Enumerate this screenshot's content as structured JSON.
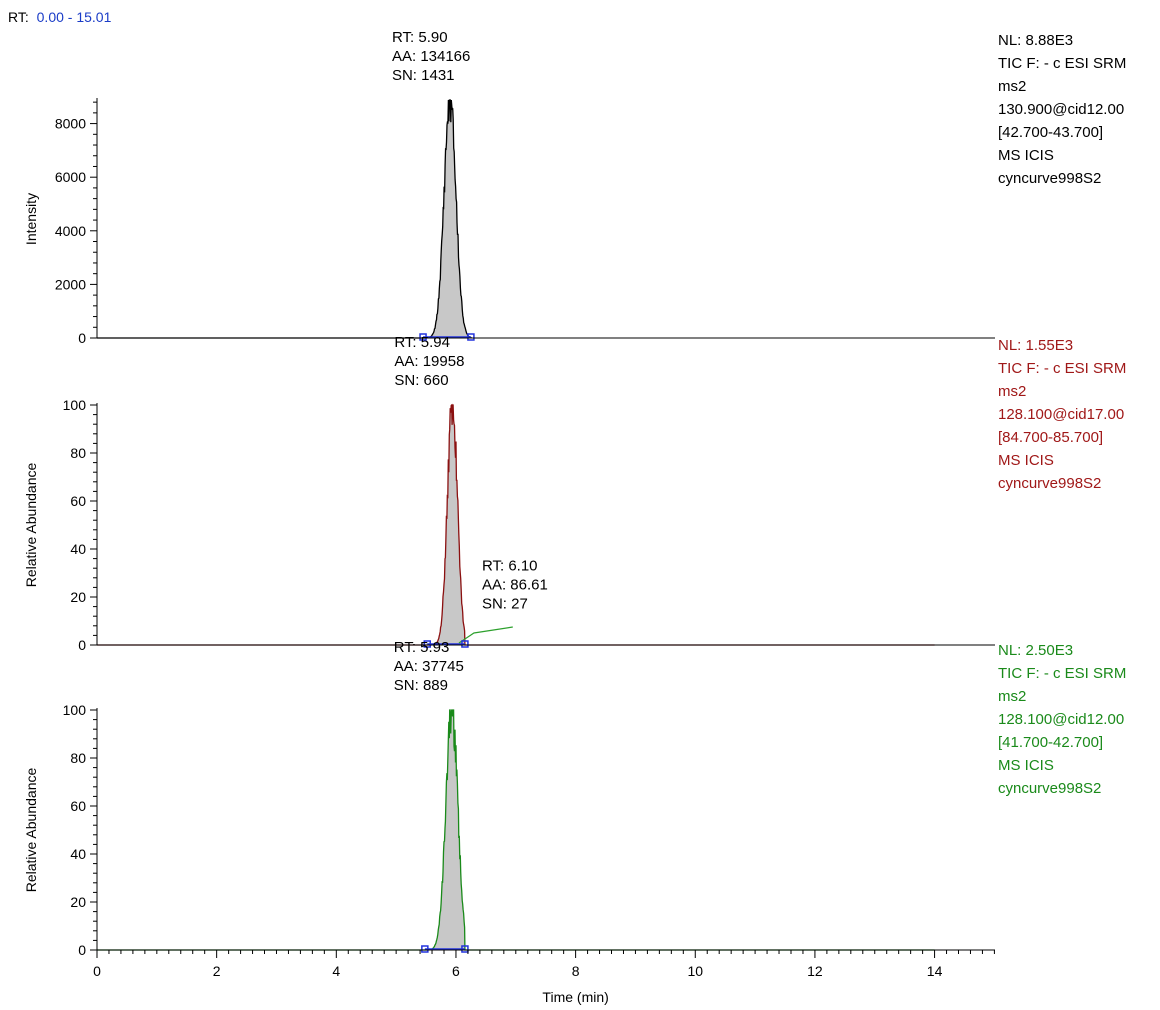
{
  "header": {
    "range_prefix": "RT:",
    "range_value": "0.00 - 15.01",
    "prefix_color": "#000000",
    "value_color": "#1a3cc7"
  },
  "x_axis": {
    "label": "Time (min)",
    "ticks": [
      0,
      2,
      4,
      6,
      8,
      10,
      12,
      14
    ],
    "range": [
      0,
      15.01
    ]
  },
  "chart_data": [
    {
      "type": "area",
      "y_axis_label": "Intensity",
      "ylim": [
        0,
        8880
      ],
      "y_ticks": [
        0,
        2000,
        4000,
        6000,
        8000
      ],
      "trace_color": "#000000",
      "fill_color": "#c8c8c8",
      "baseline_marker_color": "#2233dd",
      "peak": {
        "rt": 5.9,
        "width": 0.1,
        "start": 5.45,
        "end": 6.25,
        "height": 8880
      },
      "baseline_markers": [
        5.45,
        6.25
      ],
      "annotations": [
        {
          "rt": 5.9,
          "height": 8880,
          "lines": [
            "RT: 5.90",
            "AA: 134166",
            "SN: 1431"
          ]
        }
      ],
      "info": {
        "color": "#000000",
        "lines": [
          "NL: 8.88E3",
          "TIC F: - c ESI SRM",
          "ms2",
          "130.900@cid12.00",
          "[42.700-43.700]",
          "MS ICIS",
          "cyncurve998S2"
        ]
      }
    },
    {
      "type": "area",
      "y_axis_label": "Relative Abundance",
      "ylim": [
        0,
        100
      ],
      "y_ticks": [
        0,
        20,
        40,
        60,
        80,
        100
      ],
      "trace_color": "#8b1010",
      "fill_color": "#c8c8c8",
      "baseline_marker_color": "#2233dd",
      "secondary_color": "#2ca02c",
      "peak": {
        "rt": 5.94,
        "width": 0.085,
        "start": 5.52,
        "end": 6.15,
        "height": 100
      },
      "baseline_markers": [
        5.52,
        6.15
      ],
      "annotations": [
        {
          "rt": 5.94,
          "height": 100,
          "lines": [
            "RT: 5.94",
            "AA: 19958",
            "SN: 660"
          ]
        },
        {
          "rt": 6.1,
          "height": 6,
          "lines": [
            "RT: 6.10",
            "AA: 86.61",
            "SN: 27"
          ]
        }
      ],
      "info": {
        "color": "#a01818",
        "lines": [
          "NL: 1.55E3",
          "TIC F: - c ESI SRM",
          "ms2",
          "128.100@cid17.00",
          "[84.700-85.700]",
          "MS ICIS",
          "cyncurve998S2"
        ]
      }
    },
    {
      "type": "area",
      "y_axis_label": "Relative Abundance",
      "ylim": [
        0,
        100
      ],
      "y_ticks": [
        0,
        20,
        40,
        60,
        80,
        100
      ],
      "trace_color": "#1a8a1a",
      "fill_color": "#c8c8c8",
      "baseline_marker_color": "#2233dd",
      "peak": {
        "rt": 5.93,
        "width": 0.1,
        "start": 5.48,
        "end": 6.15,
        "height": 100
      },
      "baseline_markers": [
        5.48,
        6.15
      ],
      "annotations": [
        {
          "rt": 5.93,
          "height": 100,
          "lines": [
            "RT: 5.93",
            "AA: 37745",
            "SN: 889"
          ]
        }
      ],
      "info": {
        "color": "#1a8a1a",
        "lines": [
          "NL: 2.50E3",
          "TIC F: - c ESI SRM",
          "ms2",
          "128.100@cid12.00",
          "[41.700-42.700]",
          "MS ICIS",
          "cyncurve998S2"
        ]
      }
    }
  ]
}
